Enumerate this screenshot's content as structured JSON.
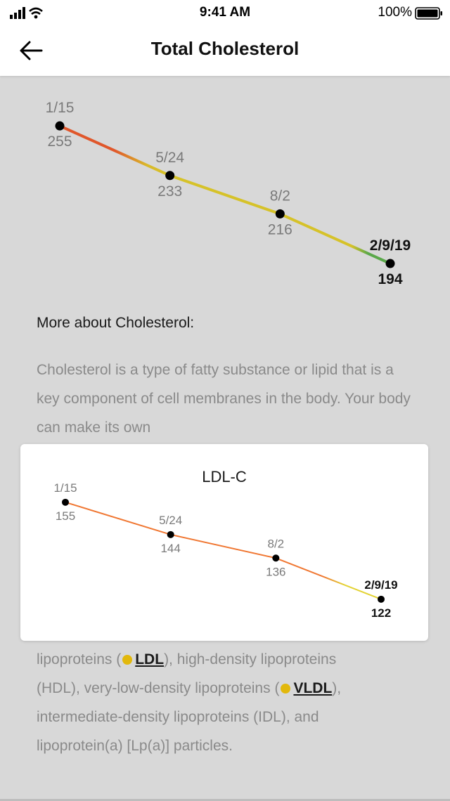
{
  "status_bar": {
    "time": "9:41 AM",
    "battery": "100%"
  },
  "header": {
    "title": "Total Cholesterol",
    "back_icon": "arrow-left-icon"
  },
  "colors": {
    "red": "#e0572b",
    "orange": "#f07732",
    "yellow": "#d6c229",
    "green": "#5aa84a",
    "dot": "#e2b80c"
  },
  "chart_data": [
    {
      "type": "line",
      "title": "Total Cholesterol",
      "points": [
        {
          "date": "1/15",
          "value": 255
        },
        {
          "date": "5/24",
          "value": 233
        },
        {
          "date": "8/2",
          "value": 216
        },
        {
          "date": "2/9/19",
          "value": 194
        }
      ],
      "ylim": [
        180,
        270
      ]
    },
    {
      "type": "line",
      "title": "LDL-C",
      "points": [
        {
          "date": "1/15",
          "value": 155
        },
        {
          "date": "5/24",
          "value": 144
        },
        {
          "date": "8/2",
          "value": 136
        },
        {
          "date": "2/9/19",
          "value": 122
        }
      ],
      "ylim": [
        110,
        165
      ]
    }
  ],
  "more": {
    "heading": "More about Cholesterol:",
    "paragraph_top": "Cholesterol is a type of fatty substance or lipid that is a key component of cell membranes in the body. Your body can make its own",
    "line1_a": "lipoproteins (",
    "ldl": "LDL",
    "line1_b": "), high-density lipoproteins",
    "line2_a": "(HDL), very-low-density lipoproteins (",
    "vldl": "VLDL",
    "line2_b": "),",
    "line3": "intermediate-density lipoproteins (IDL), and",
    "line4": "lipoprotein(a) [Lp(a)] particles."
  },
  "card": {
    "title": "LDL-C"
  }
}
